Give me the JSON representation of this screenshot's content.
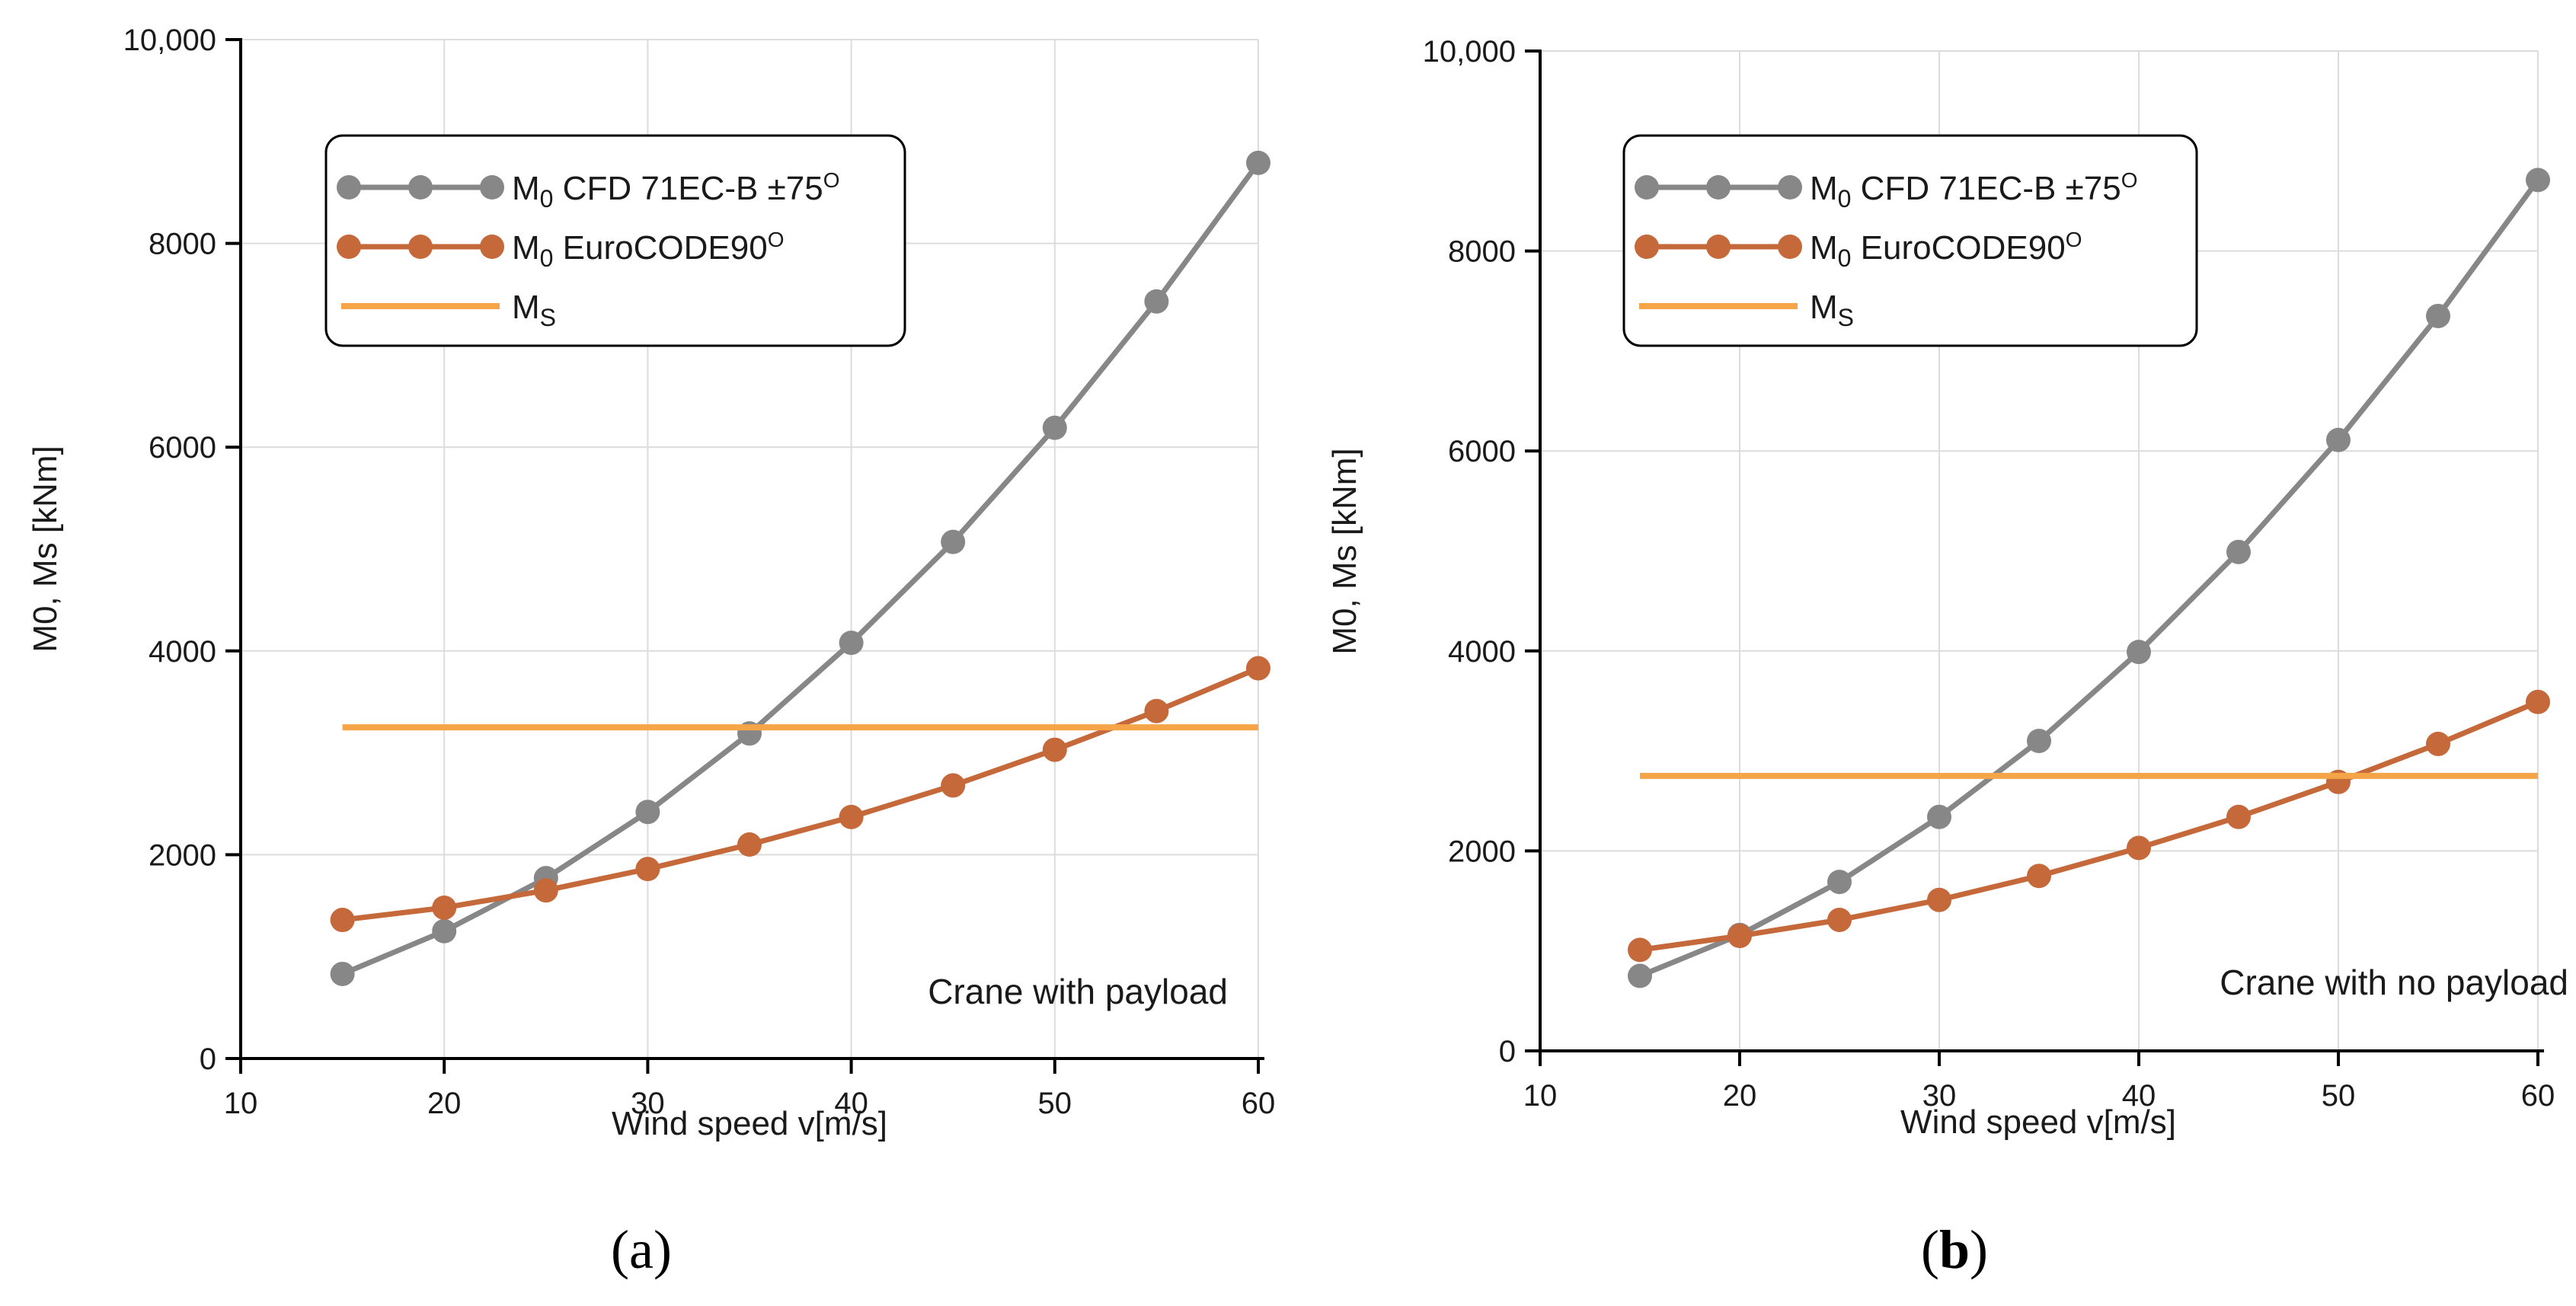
{
  "chart_data": [
    {
      "type": "line",
      "panel_label": "(a)",
      "panel_paren_open": "(",
      "panel_letter": "a",
      "panel_paren_close": ")",
      "annotation": "Crane with payload",
      "xlabel": "Wind speed v[m/s]",
      "ylabel": "M0, Ms [kNm]",
      "xlim": [
        10,
        60
      ],
      "ylim": [
        0,
        10000
      ],
      "x_ticks": [
        "10",
        "20",
        "30",
        "40",
        "50",
        "60"
      ],
      "y_ticks": [
        "0",
        "2000",
        "4000",
        "6000",
        "8000",
        "10,000"
      ],
      "grid": true,
      "legend_position": "top-left",
      "x": [
        15,
        20,
        25,
        30,
        35,
        40,
        45,
        50,
        55,
        60
      ],
      "series": [
        {
          "name": "M0 CFD 71EC-B ±75O",
          "name_parts": [
            "M",
            "0",
            " CFD 71EC-B ±75",
            "O"
          ],
          "color": "#878787",
          "marker": "circle",
          "values": [
            830,
            1250,
            1770,
            2420,
            3190,
            4080,
            5070,
            6190,
            7430,
            8790
          ]
        },
        {
          "name": "M0 EuroCODE90O",
          "name_parts": [
            "M",
            "0",
            " EuroCODE90",
            "O"
          ],
          "color": "#C5683A",
          "marker": "circle",
          "values": [
            1360,
            1480,
            1650,
            1860,
            2100,
            2370,
            2680,
            3030,
            3410,
            3830
          ]
        },
        {
          "name": "MS",
          "name_parts": [
            "M",
            "S"
          ],
          "color": "#F5A547",
          "marker": "none",
          "constant": 3250
        }
      ]
    },
    {
      "type": "line",
      "panel_label": "(b)",
      "panel_paren_open": "(",
      "panel_letter": "b",
      "panel_paren_close": ")",
      "annotation": "Crane with no payload",
      "xlabel": "Wind speed v[m/s]",
      "ylabel": "M0, Ms [kNm]",
      "xlim": [
        10,
        60
      ],
      "ylim": [
        0,
        10000
      ],
      "x_ticks": [
        "10",
        "20",
        "30",
        "40",
        "50",
        "60"
      ],
      "y_ticks": [
        "0",
        "2000",
        "4000",
        "6000",
        "8000",
        "10,000"
      ],
      "grid": true,
      "legend_position": "top-left",
      "x": [
        15,
        20,
        25,
        30,
        35,
        40,
        45,
        50,
        55,
        60
      ],
      "series": [
        {
          "name": "M0 CFD 71EC-B ±75O",
          "name_parts": [
            "M",
            "0",
            " CFD 71EC-B ±75",
            "O"
          ],
          "color": "#878787",
          "marker": "circle",
          "values": [
            750,
            1160,
            1690,
            2340,
            3100,
            3990,
            4990,
            6110,
            7350,
            8710
          ]
        },
        {
          "name": "M0 EuroCODE90O",
          "name_parts": [
            "M",
            "0",
            " EuroCODE90",
            "O"
          ],
          "color": "#C5683A",
          "marker": "circle",
          "values": [
            1010,
            1150,
            1310,
            1510,
            1750,
            2030,
            2340,
            2690,
            3070,
            3490
          ]
        },
        {
          "name": "MS",
          "name_parts": [
            "M",
            "S"
          ],
          "color": "#F5A547",
          "marker": "none",
          "constant": 2750
        }
      ]
    }
  ]
}
